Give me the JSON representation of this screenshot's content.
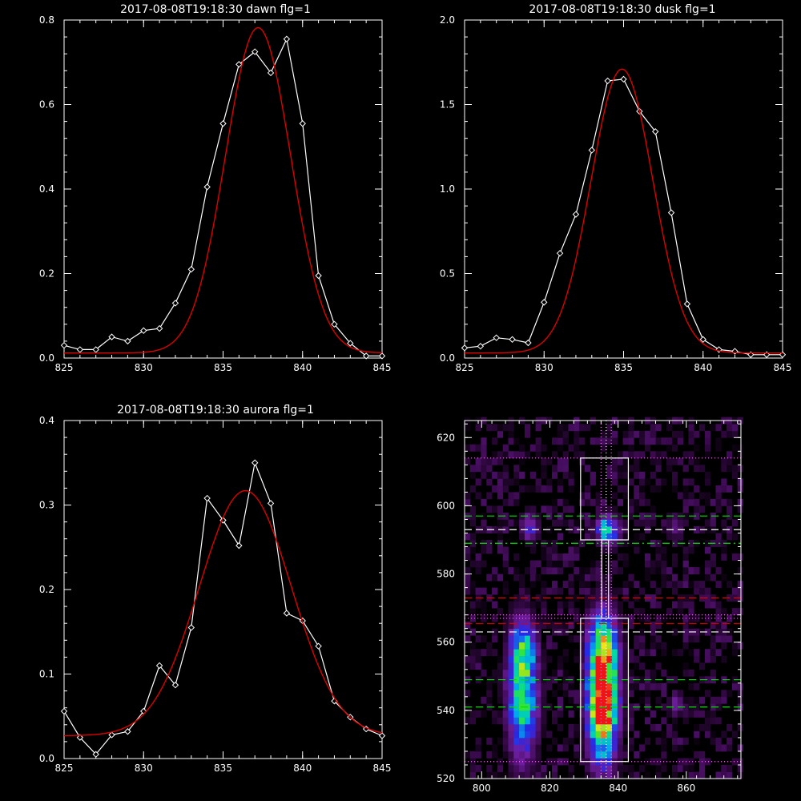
{
  "chart_data": [
    {
      "type": "line",
      "title": "2017-08-08T19:18:30 dawn flg=1",
      "xlim": [
        825,
        845
      ],
      "ylim": [
        0,
        0.8
      ],
      "xticks": [
        "825",
        "830",
        "835",
        "840",
        "845"
      ],
      "yticks": [
        "0.0",
        "0.2",
        "0.4",
        "0.6",
        "0.8"
      ],
      "series": [
        {
          "kind": "data",
          "color": "#ffffff",
          "marker": "diamond",
          "x": [
            825,
            826,
            827,
            828,
            829,
            830,
            831,
            832,
            833,
            834,
            835,
            836,
            837,
            838,
            839,
            840,
            841,
            842,
            843,
            844,
            845
          ],
          "y": [
            0.03,
            0.02,
            0.02,
            0.05,
            0.04,
            0.065,
            0.07,
            0.13,
            0.21,
            0.405,
            0.555,
            0.695,
            0.725,
            0.675,
            0.755,
            0.555,
            0.195,
            0.08,
            0.035,
            0.005,
            0.005
          ]
        },
        {
          "kind": "fit",
          "color": "#dd0000",
          "gauss": {
            "amp": 0.77,
            "center": 837.2,
            "sigma": 2.05,
            "base": 0.012
          }
        }
      ]
    },
    {
      "type": "line",
      "title": "2017-08-08T19:18:30 dusk flg=1",
      "xlim": [
        825,
        845
      ],
      "ylim": [
        0,
        2.0
      ],
      "xticks": [
        "825",
        "830",
        "835",
        "840",
        "845"
      ],
      "yticks": [
        "0.0",
        "0.5",
        "1.0",
        "1.5",
        "2.0"
      ],
      "series": [
        {
          "kind": "data",
          "color": "#ffffff",
          "marker": "diamond",
          "x": [
            825,
            826,
            827,
            828,
            829,
            830,
            831,
            832,
            833,
            834,
            835,
            836,
            837,
            838,
            839,
            840,
            841,
            842,
            843,
            844,
            845
          ],
          "y": [
            0.06,
            0.07,
            0.12,
            0.11,
            0.09,
            0.33,
            0.62,
            0.85,
            1.23,
            1.64,
            1.65,
            1.46,
            1.34,
            0.86,
            0.32,
            0.11,
            0.05,
            0.04,
            0.02,
            0.02,
            0.02
          ]
        },
        {
          "kind": "fit",
          "color": "#dd0000",
          "gauss": {
            "amp": 1.68,
            "center": 834.9,
            "sigma": 1.95,
            "base": 0.03
          }
        }
      ]
    },
    {
      "type": "line",
      "title": "2017-08-08T19:18:30 aurora flg=1",
      "xlim": [
        825,
        845
      ],
      "ylim": [
        0,
        0.4
      ],
      "xticks": [
        "825",
        "830",
        "835",
        "840",
        "845"
      ],
      "yticks": [
        "0.0",
        "0.1",
        "0.2",
        "0.3",
        "0.4"
      ],
      "series": [
        {
          "kind": "data",
          "color": "#ffffff",
          "marker": "diamond",
          "x": [
            825,
            826,
            827,
            828,
            829,
            830,
            831,
            832,
            833,
            834,
            835,
            836,
            837,
            838,
            839,
            840,
            841,
            842,
            843,
            844,
            845
          ],
          "y": [
            0.056,
            0.025,
            0.005,
            0.028,
            0.032,
            0.056,
            0.11,
            0.087,
            0.155,
            0.308,
            0.282,
            0.252,
            0.35,
            0.302,
            0.172,
            0.163,
            0.133,
            0.068,
            0.049,
            0.035,
            0.027
          ]
        },
        {
          "kind": "fit",
          "color": "#dd0000",
          "gauss": {
            "amp": 0.29,
            "center": 836.4,
            "sigma": 2.9,
            "base": 0.027
          }
        }
      ]
    },
    {
      "type": "heatmap",
      "title": "",
      "xlim": [
        795,
        876
      ],
      "ylim": [
        520,
        625
      ],
      "xticks": [
        "800",
        "820",
        "840",
        "860"
      ],
      "yticks": [
        "520",
        "540",
        "560",
        "580",
        "600",
        "620"
      ],
      "blobs": [
        {
          "x": 835.5,
          "y": 545,
          "wx": 3,
          "wy": 14,
          "amp": 1.0
        },
        {
          "x": 835.5,
          "y": 540,
          "wx": 2.5,
          "wy": 6,
          "amp": 0.3
        },
        {
          "x": 835.5,
          "y": 558,
          "wx": 3,
          "wy": 6,
          "amp": 0.35
        },
        {
          "x": 812,
          "y": 545,
          "wx": 3,
          "wy": 13,
          "amp": 0.7
        },
        {
          "x": 812,
          "y": 558,
          "wx": 2.5,
          "wy": 5,
          "amp": 0.3
        },
        {
          "x": 837,
          "y": 593,
          "wx": 2.2,
          "wy": 3,
          "amp": 0.65
        },
        {
          "x": 814,
          "y": 594,
          "wx": 1.8,
          "wy": 3,
          "amp": 0.35
        },
        {
          "x": 857,
          "y": 594,
          "wx": 1.6,
          "wy": 3,
          "amp": 0.2
        },
        {
          "x": 857,
          "y": 542,
          "wx": 1.5,
          "wy": 2.5,
          "amp": 0.25
        }
      ],
      "lines": [
        {
          "orient": "h",
          "value": 614,
          "color": "#ff66ff",
          "style": "dotted"
        },
        {
          "orient": "h",
          "value": 525,
          "color": "#ff66ff",
          "style": "dotted"
        },
        {
          "orient": "h",
          "value": 568,
          "color": "#ff66ff",
          "style": "dotted"
        },
        {
          "orient": "h",
          "value": 567,
          "color": "#ff66ff",
          "style": "dotted"
        },
        {
          "orient": "h",
          "value": 597,
          "color": "#00dd00",
          "style": "dashed"
        },
        {
          "orient": "h",
          "value": 589,
          "color": "#00dd00",
          "style": "dashdot"
        },
        {
          "orient": "h",
          "value": 549,
          "color": "#00dd00",
          "style": "dashed"
        },
        {
          "orient": "h",
          "value": 541,
          "color": "#00dd00",
          "style": "dashed"
        },
        {
          "orient": "h",
          "value": 593,
          "color": "#ffffff",
          "style": "dashed"
        },
        {
          "orient": "h",
          "value": 563,
          "color": "#ffffff",
          "style": "dashed"
        },
        {
          "orient": "h",
          "value": 573,
          "color": "#dd0000",
          "style": "dashed"
        },
        {
          "orient": "h",
          "value": 565.5,
          "color": "#dd0000",
          "style": "dashed"
        },
        {
          "orient": "v",
          "value": 835,
          "color": "#ff66ff",
          "style": "dotted"
        },
        {
          "orient": "v",
          "value": 838,
          "color": "#ff66ff",
          "style": "dotted"
        },
        {
          "orient": "v",
          "value": 836.5,
          "color": "#ffffff",
          "style": "dotted"
        }
      ],
      "boxes": [
        {
          "x0": 829,
          "x1": 843,
          "y0": 525,
          "y1": 567
        },
        {
          "x0": 829,
          "x1": 843,
          "y0": 590,
          "y1": 614
        },
        {
          "x0": 835.2,
          "x1": 837.2,
          "y0": 567,
          "y1": 590
        }
      ]
    }
  ]
}
